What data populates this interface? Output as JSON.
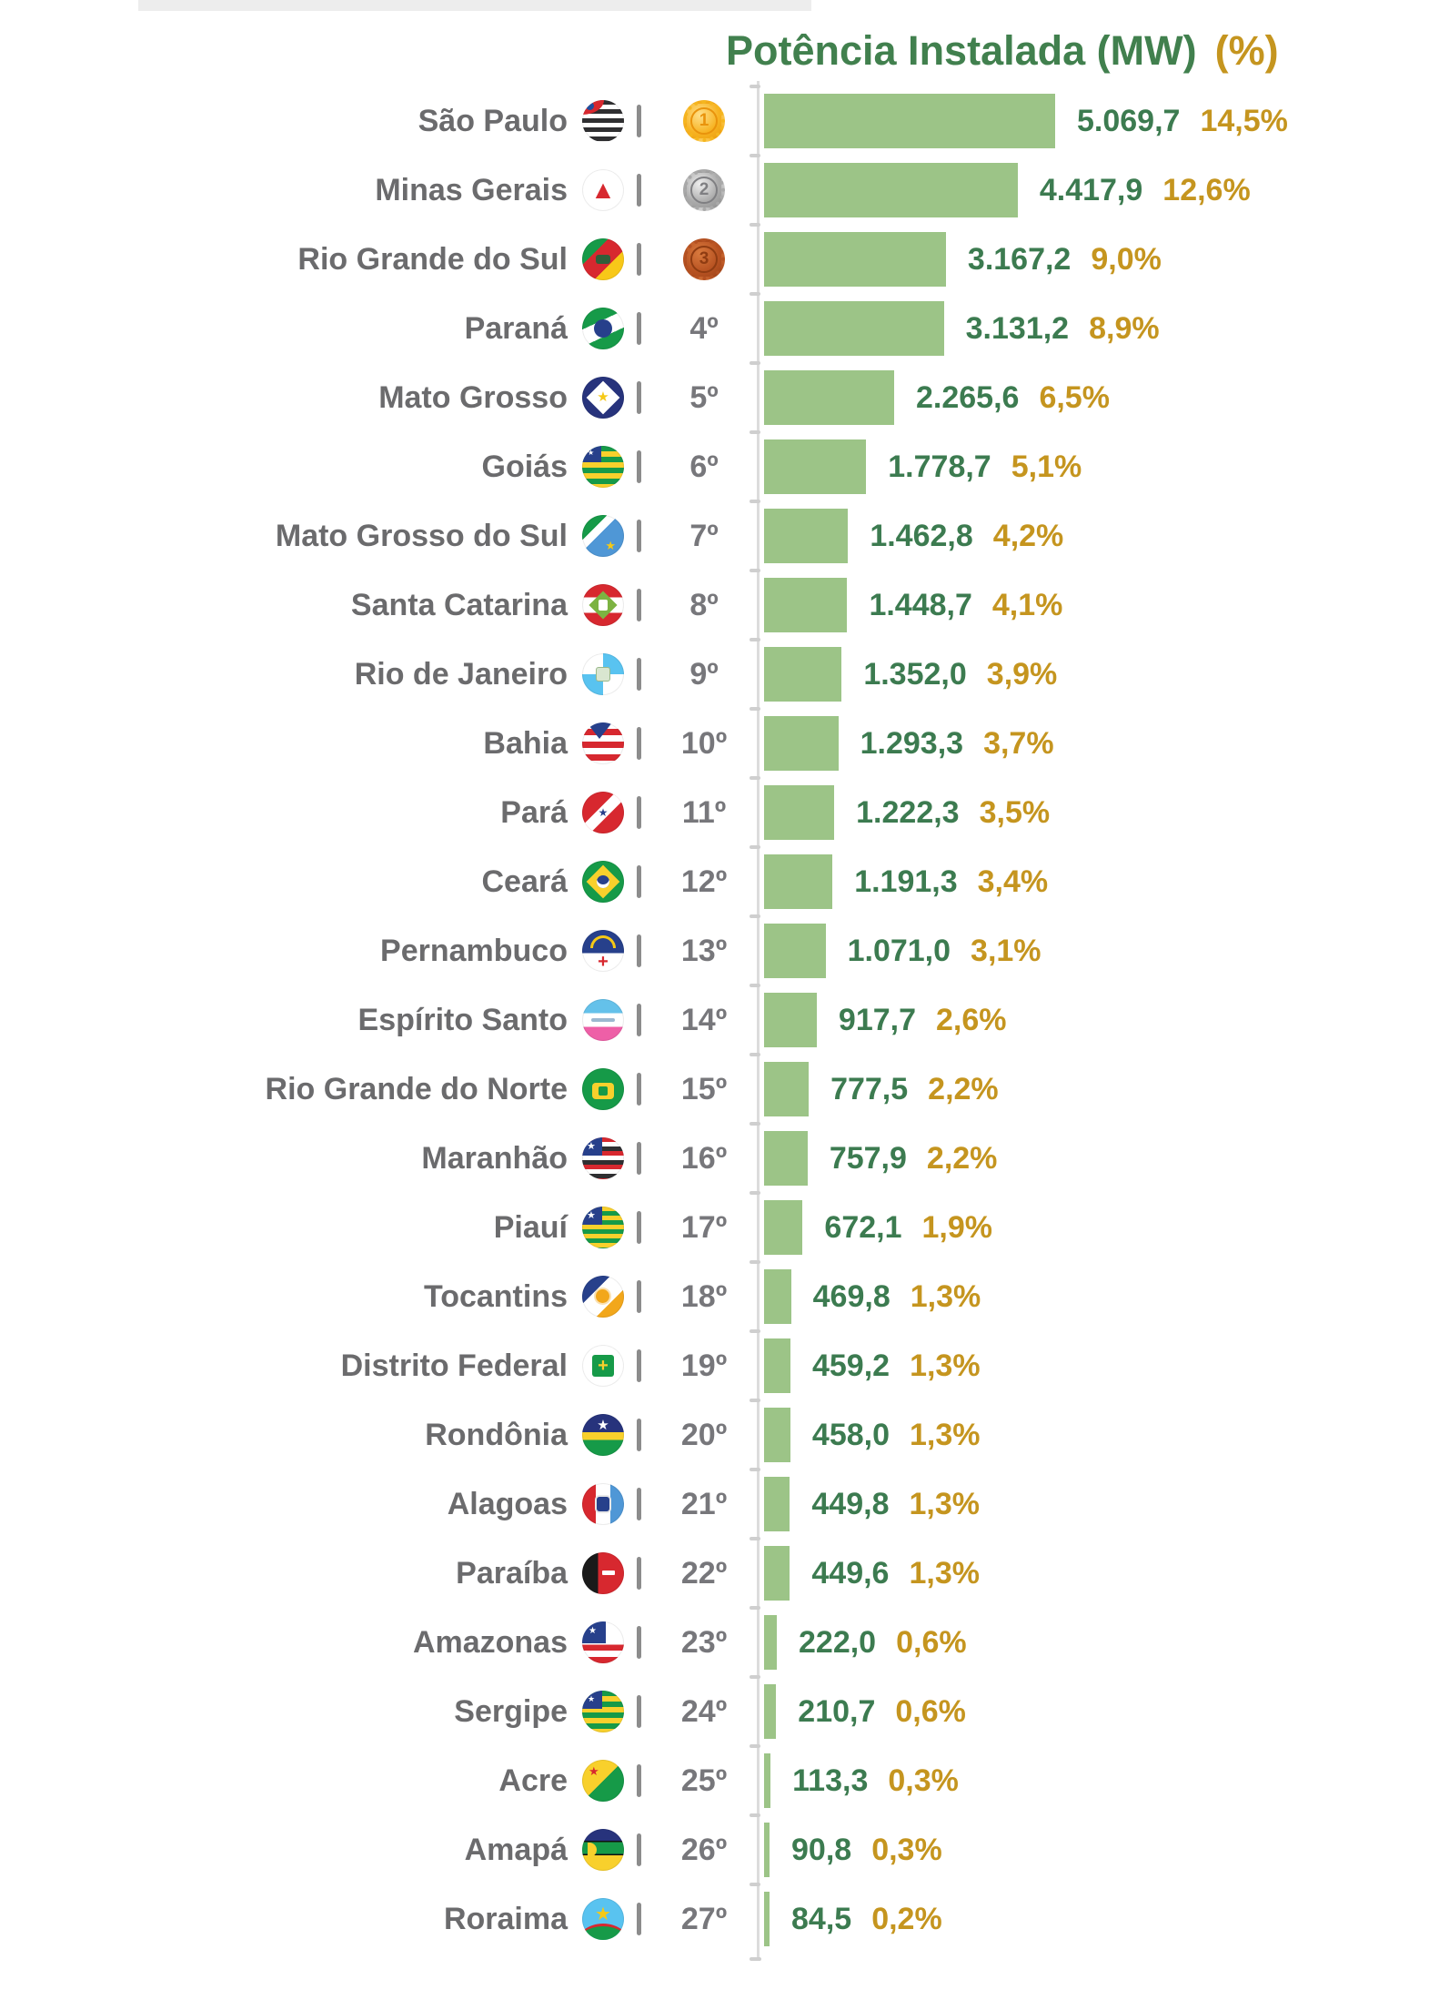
{
  "title": {
    "main": "Potência Instalada (MW)",
    "pct": "(%)"
  },
  "colors": {
    "bar": "#9cc487",
    "value-text": "#3c7b50",
    "pct-text": "#c5951f",
    "title-green": "#41804e",
    "label-gray": "#6b6b6d",
    "rank-gray": "#77777b",
    "axis": "#dcdcdc",
    "medal-gold": "#f5b61f",
    "medal-silver": "#a9a9a9",
    "medal-bronze": "#b45122"
  },
  "rows": [
    {
      "name": "São Paulo",
      "flag": "sao-paulo",
      "rank": "1º",
      "medal": "gold",
      "medal_label": "1",
      "value": "5.069,7",
      "pct": "14,5%"
    },
    {
      "name": "Minas Gerais",
      "flag": "minas-gerais",
      "rank": "2º",
      "medal": "silver",
      "medal_label": "2",
      "value": "4.417,9",
      "pct": "12,6%"
    },
    {
      "name": "Rio Grande do Sul",
      "flag": "rio-grande-do-sul",
      "rank": "3º",
      "medal": "bronze",
      "medal_label": "3",
      "value": "3.167,2",
      "pct": "9,0%"
    },
    {
      "name": "Paraná",
      "flag": "parana",
      "rank": "4º",
      "medal": null,
      "medal_label": null,
      "value": "3.131,2",
      "pct": "8,9%"
    },
    {
      "name": "Mato Grosso",
      "flag": "mato-grosso",
      "rank": "5º",
      "medal": null,
      "medal_label": null,
      "value": "2.265,6",
      "pct": "6,5%"
    },
    {
      "name": "Goiás",
      "flag": "goias",
      "rank": "6º",
      "medal": null,
      "medal_label": null,
      "value": "1.778,7",
      "pct": "5,1%"
    },
    {
      "name": "Mato Grosso do Sul",
      "flag": "mato-grosso-do-sul",
      "rank": "7º",
      "medal": null,
      "medal_label": null,
      "value": "1.462,8",
      "pct": "4,2%"
    },
    {
      "name": "Santa Catarina",
      "flag": "santa-catarina",
      "rank": "8º",
      "medal": null,
      "medal_label": null,
      "value": "1.448,7",
      "pct": "4,1%"
    },
    {
      "name": "Rio de Janeiro",
      "flag": "rio-de-janeiro",
      "rank": "9º",
      "medal": null,
      "medal_label": null,
      "value": "1.352,0",
      "pct": "3,9%"
    },
    {
      "name": "Bahia",
      "flag": "bahia",
      "rank": "10º",
      "medal": null,
      "medal_label": null,
      "value": "1.293,3",
      "pct": "3,7%"
    },
    {
      "name": "Pará",
      "flag": "para",
      "rank": "11º",
      "medal": null,
      "medal_label": null,
      "value": "1.222,3",
      "pct": "3,5%"
    },
    {
      "name": "Ceará",
      "flag": "ceara",
      "rank": "12º",
      "medal": null,
      "medal_label": null,
      "value": "1.191,3",
      "pct": "3,4%"
    },
    {
      "name": "Pernambuco",
      "flag": "pernambuco",
      "rank": "13º",
      "medal": null,
      "medal_label": null,
      "value": "1.071,0",
      "pct": "3,1%"
    },
    {
      "name": "Espírito Santo",
      "flag": "espirito-santo",
      "rank": "14º",
      "medal": null,
      "medal_label": null,
      "value": "917,7",
      "pct": "2,6%"
    },
    {
      "name": "Rio Grande do Norte",
      "flag": "rio-grande-do-norte",
      "rank": "15º",
      "medal": null,
      "medal_label": null,
      "value": "777,5",
      "pct": "2,2%"
    },
    {
      "name": "Maranhão",
      "flag": "maranhao",
      "rank": "16º",
      "medal": null,
      "medal_label": null,
      "value": "757,9",
      "pct": "2,2%"
    },
    {
      "name": "Piauí",
      "flag": "piaui",
      "rank": "17º",
      "medal": null,
      "medal_label": null,
      "value": "672,1",
      "pct": "1,9%"
    },
    {
      "name": "Tocantins",
      "flag": "tocantins",
      "rank": "18º",
      "medal": null,
      "medal_label": null,
      "value": "469,8",
      "pct": "1,3%"
    },
    {
      "name": "Distrito Federal",
      "flag": "distrito-federal",
      "rank": "19º",
      "medal": null,
      "medal_label": null,
      "value": "459,2",
      "pct": "1,3%"
    },
    {
      "name": "Rondônia",
      "flag": "rondonia",
      "rank": "20º",
      "medal": null,
      "medal_label": null,
      "value": "458,0",
      "pct": "1,3%"
    },
    {
      "name": "Alagoas",
      "flag": "alagoas",
      "rank": "21º",
      "medal": null,
      "medal_label": null,
      "value": "449,8",
      "pct": "1,3%"
    },
    {
      "name": "Paraíba",
      "flag": "paraiba",
      "rank": "22º",
      "medal": null,
      "medal_label": null,
      "value": "449,6",
      "pct": "1,3%"
    },
    {
      "name": "Amazonas",
      "flag": "amazonas",
      "rank": "23º",
      "medal": null,
      "medal_label": null,
      "value": "222,0",
      "pct": "0,6%"
    },
    {
      "name": "Sergipe",
      "flag": "sergipe",
      "rank": "24º",
      "medal": null,
      "medal_label": null,
      "value": "210,7",
      "pct": "0,6%"
    },
    {
      "name": "Acre",
      "flag": "acre",
      "rank": "25º",
      "medal": null,
      "medal_label": null,
      "value": "113,3",
      "pct": "0,3%"
    },
    {
      "name": "Amapá",
      "flag": "amapa",
      "rank": "26º",
      "medal": null,
      "medal_label": null,
      "value": "90,8",
      "pct": "0,3%"
    },
    {
      "name": "Roraima",
      "flag": "roraima",
      "rank": "27º",
      "medal": null,
      "medal_label": null,
      "value": "84,5",
      "pct": "0,2%"
    }
  ],
  "chart_data": {
    "type": "bar",
    "orientation": "horizontal",
    "title": "Potência Instalada (MW) (%)",
    "categories": [
      "São Paulo",
      "Minas Gerais",
      "Rio Grande do Sul",
      "Paraná",
      "Mato Grosso",
      "Goiás",
      "Mato Grosso do Sul",
      "Santa Catarina",
      "Rio de Janeiro",
      "Bahia",
      "Pará",
      "Ceará",
      "Pernambuco",
      "Espírito Santo",
      "Rio Grande do Norte",
      "Maranhão",
      "Piauí",
      "Tocantins",
      "Distrito Federal",
      "Rondônia",
      "Alagoas",
      "Paraíba",
      "Amazonas",
      "Sergipe",
      "Acre",
      "Amapá",
      "Roraima"
    ],
    "ranks": [
      "1º",
      "2º",
      "3º",
      "4º",
      "5º",
      "6º",
      "7º",
      "8º",
      "9º",
      "10º",
      "11º",
      "12º",
      "13º",
      "14º",
      "15º",
      "16º",
      "17º",
      "18º",
      "19º",
      "20º",
      "21º",
      "22º",
      "23º",
      "24º",
      "25º",
      "26º",
      "27º"
    ],
    "series": [
      {
        "name": "Potência Instalada (MW)",
        "values": [
          5069.7,
          4417.9,
          3167.2,
          3131.2,
          2265.6,
          1778.7,
          1462.8,
          1448.7,
          1352.0,
          1293.3,
          1222.3,
          1191.3,
          1071.0,
          917.7,
          777.5,
          757.9,
          672.1,
          469.8,
          459.2,
          458.0,
          449.8,
          449.6,
          222.0,
          210.7,
          113.3,
          90.8,
          84.5
        ]
      },
      {
        "name": "%",
        "values": [
          14.5,
          12.6,
          9.0,
          8.9,
          6.5,
          5.1,
          4.2,
          4.1,
          3.9,
          3.7,
          3.5,
          3.4,
          3.1,
          2.6,
          2.2,
          2.2,
          1.9,
          1.3,
          1.3,
          1.3,
          1.3,
          1.3,
          0.6,
          0.6,
          0.3,
          0.3,
          0.2
        ]
      }
    ],
    "xlim": [
      0,
      5500
    ],
    "grid": false,
    "legend_position": "none",
    "value_labels": "right-of-bar"
  }
}
